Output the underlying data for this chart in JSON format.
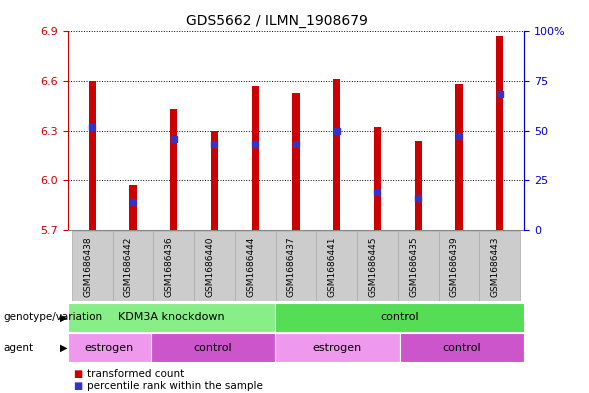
{
  "title": "GDS5662 / ILMN_1908679",
  "samples": [
    "GSM1686438",
    "GSM1686442",
    "GSM1686436",
    "GSM1686440",
    "GSM1686444",
    "GSM1686437",
    "GSM1686441",
    "GSM1686445",
    "GSM1686435",
    "GSM1686439",
    "GSM1686443"
  ],
  "bar_values": [
    6.6,
    5.97,
    6.43,
    6.3,
    6.57,
    6.53,
    6.61,
    6.32,
    6.24,
    6.58,
    6.87
  ],
  "percentile_values": [
    6.32,
    5.87,
    6.25,
    6.22,
    6.22,
    6.22,
    6.3,
    5.93,
    5.89,
    6.27,
    6.52
  ],
  "ymin": 5.7,
  "ymax": 6.9,
  "yticks": [
    5.7,
    6.0,
    6.3,
    6.6,
    6.9
  ],
  "right_yticks": [
    0,
    25,
    50,
    75,
    100
  ],
  "right_ytick_labels": [
    "0",
    "25",
    "50",
    "75",
    "100%"
  ],
  "bar_color": "#cc0000",
  "percentile_color": "#3333cc",
  "bar_width": 0.18,
  "genotype_groups": [
    {
      "label": "KDM3A knockdown",
      "start": 0,
      "end": 4,
      "color": "#88ee88"
    },
    {
      "label": "control",
      "start": 5,
      "end": 10,
      "color": "#55dd55"
    }
  ],
  "agent_groups": [
    {
      "label": "estrogen",
      "start": 0,
      "end": 1,
      "color": "#ee99ee"
    },
    {
      "label": "control",
      "start": 2,
      "end": 4,
      "color": "#cc55cc"
    },
    {
      "label": "estrogen",
      "start": 5,
      "end": 7,
      "color": "#ee99ee"
    },
    {
      "label": "control",
      "start": 8,
      "end": 10,
      "color": "#cc55cc"
    }
  ],
  "legend_items": [
    {
      "label": "transformed count",
      "color": "#cc0000"
    },
    {
      "label": "percentile rank within the sample",
      "color": "#3333cc"
    }
  ],
  "ylabel_left_color": "#cc0000",
  "ylabel_right_color": "#0000cc",
  "background_color": "#ffffff",
  "label_row1": "genotype/variation",
  "label_row2": "agent"
}
